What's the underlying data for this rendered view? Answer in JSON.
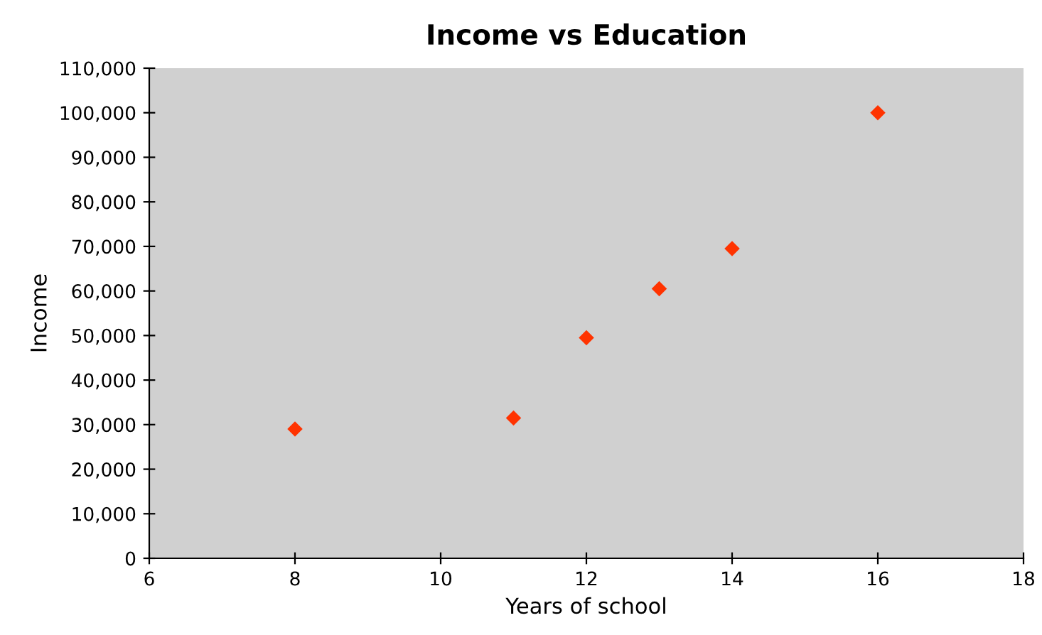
{
  "chart_data": {
    "type": "scatter",
    "title": "Income vs Education",
    "xlabel": "Years of school",
    "ylabel": "Income",
    "x": [
      8,
      11,
      12,
      13,
      14,
      16
    ],
    "values": [
      29000,
      31500,
      49500,
      60500,
      69500,
      100000
    ],
    "color": "#ff3300",
    "marker": "diamond",
    "grid": false,
    "legend": false,
    "xlim": [
      6,
      18
    ],
    "xticks": [
      6,
      8,
      10,
      12,
      14,
      16,
      18
    ],
    "ylim": [
      0,
      110000
    ],
    "yticks": [
      {
        "value": 0,
        "label": "0"
      },
      {
        "value": 10000,
        "label": "10,000"
      },
      {
        "value": 20000,
        "label": "20,000"
      },
      {
        "value": 30000,
        "label": "30,000"
      },
      {
        "value": 40000,
        "label": "40,000"
      },
      {
        "value": 50000,
        "label": "50,000"
      },
      {
        "value": 60000,
        "label": "60,000"
      },
      {
        "value": 70000,
        "label": "70,000"
      },
      {
        "value": 80000,
        "label": "80,000"
      },
      {
        "value": 90000,
        "label": "90,000"
      },
      {
        "value": 100000,
        "label": "100,000"
      },
      {
        "value": 110000,
        "label": "110,000"
      }
    ]
  }
}
